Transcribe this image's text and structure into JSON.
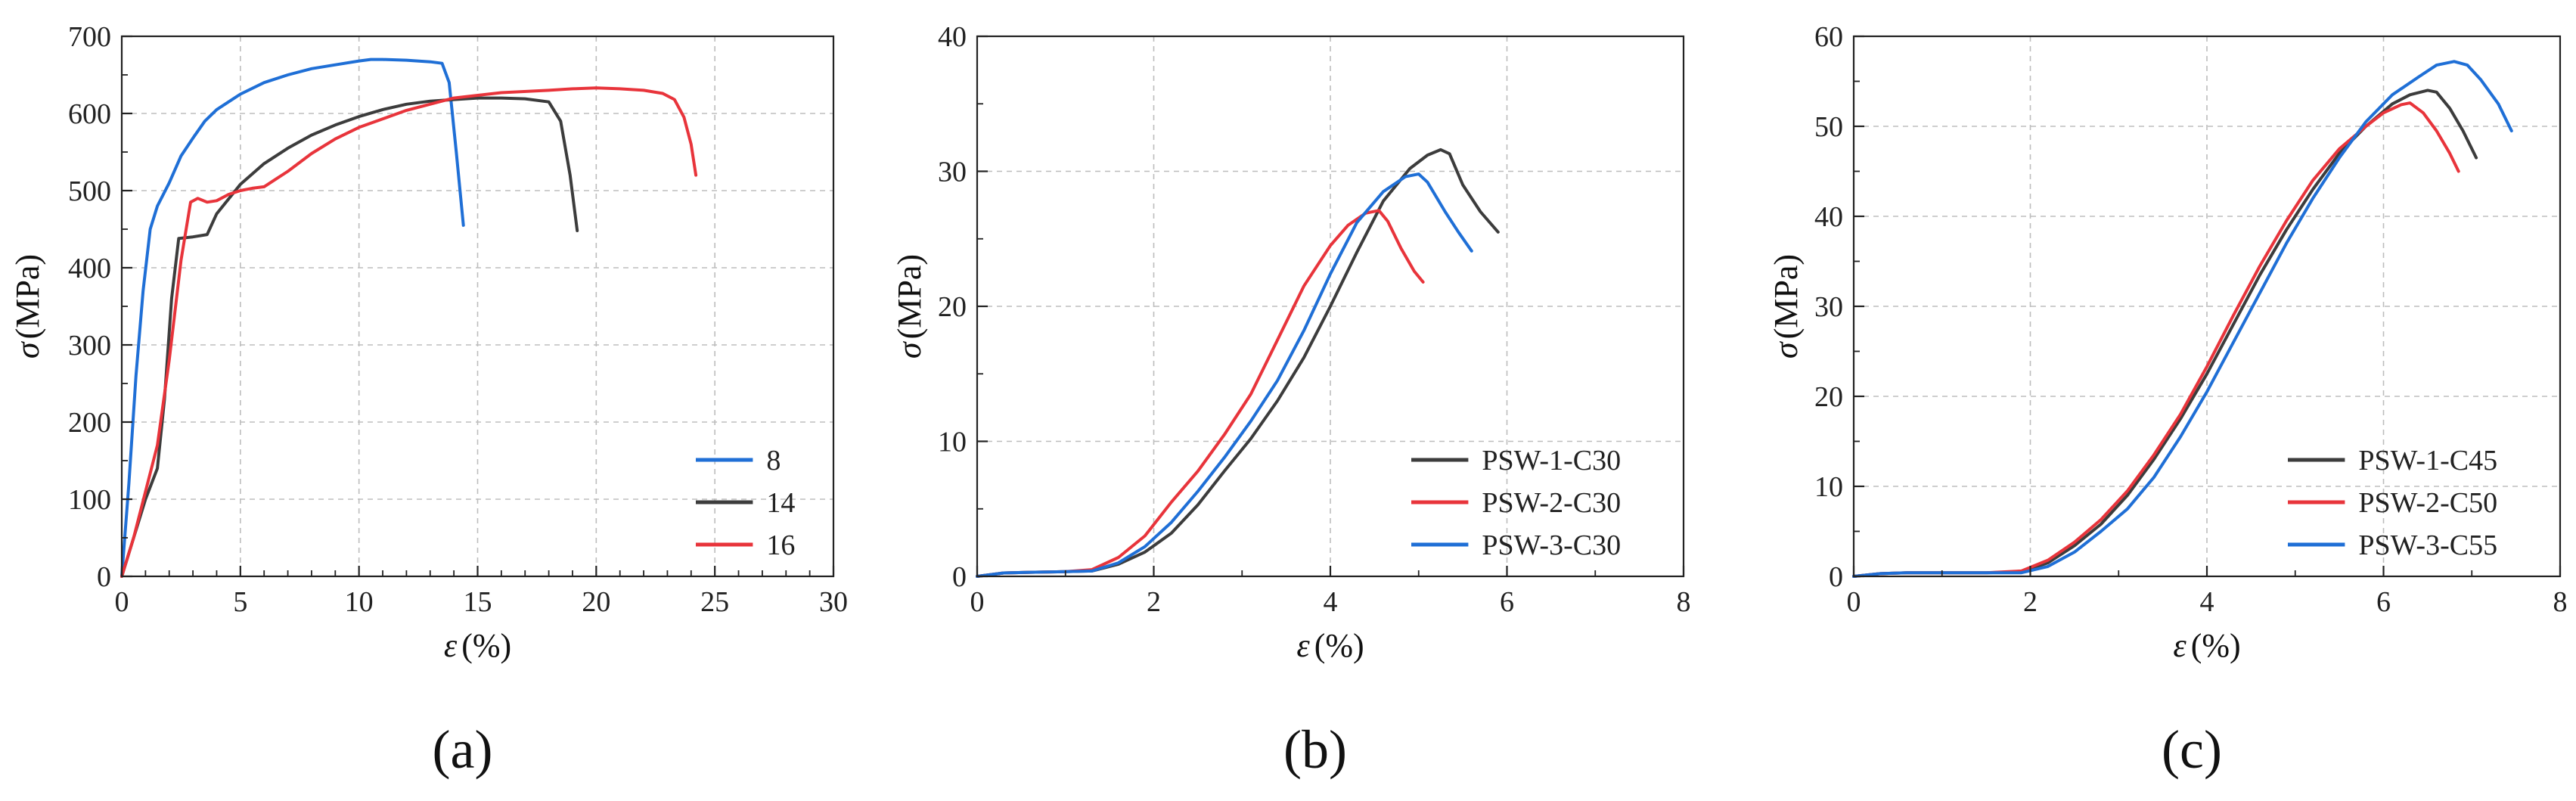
{
  "chart_data": [
    {
      "type": "line",
      "panel_label": "(a)",
      "xlabel_symbol": "ε",
      "xlabel_unit": "(%)",
      "ylabel_symbol": "σ",
      "ylabel_unit": "(MPa)",
      "xlim": [
        0,
        30
      ],
      "ylim": [
        0,
        700
      ],
      "xticks": [
        "0",
        "5",
        "10",
        "15",
        "20",
        "25",
        "30"
      ],
      "yticks": [
        "0",
        "100",
        "200",
        "300",
        "400",
        "500",
        "600",
        "700"
      ],
      "grid": true,
      "legend_position": "bottom-right",
      "series": [
        {
          "name": "8",
          "color": "#1f6fd6",
          "x": [
            0,
            0.3,
            0.6,
            0.9,
            1.2,
            1.5,
            2.0,
            2.5,
            3.0,
            3.5,
            4.0,
            5.0,
            6.0,
            7.0,
            8.0,
            9.0,
            10.0,
            10.5,
            11.0,
            12.0,
            13.0,
            13.5,
            13.8,
            14.1,
            14.4
          ],
          "y": [
            0,
            120,
            260,
            370,
            450,
            480,
            510,
            545,
            568,
            590,
            605,
            625,
            640,
            650,
            658,
            663,
            668,
            670,
            670,
            669,
            667,
            665,
            640,
            550,
            455
          ]
        },
        {
          "name": "14",
          "color": "#3c3c3c",
          "x": [
            0,
            0.5,
            1.0,
            1.5,
            1.8,
            2.1,
            2.4,
            3.0,
            3.6,
            4.0,
            5.0,
            6.0,
            7.0,
            8.0,
            9.0,
            10.0,
            11.0,
            12.0,
            13.0,
            14.0,
            15.0,
            16.0,
            17.0,
            18.0,
            18.5,
            18.9,
            19.2
          ],
          "y": [
            0,
            50,
            100,
            140,
            230,
            360,
            438,
            440,
            443,
            470,
            508,
            535,
            555,
            572,
            585,
            596,
            605,
            612,
            616,
            618,
            620,
            620,
            619,
            615,
            590,
            520,
            448
          ]
        },
        {
          "name": "16",
          "color": "#e8343b",
          "x": [
            0,
            0.5,
            1.0,
            1.5,
            2.0,
            2.5,
            2.9,
            3.2,
            3.6,
            4.0,
            4.5,
            5.0,
            5.5,
            6.0,
            6.5,
            7.0,
            8.0,
            9.0,
            10.0,
            12.0,
            14.0,
            16.0,
            18.0,
            19.0,
            20.0,
            21.0,
            22.0,
            22.8,
            23.3,
            23.7,
            24.0,
            24.2
          ],
          "y": [
            0,
            50,
            110,
            170,
            280,
            410,
            485,
            490,
            485,
            487,
            495,
            500,
            503,
            505,
            515,
            525,
            548,
            567,
            582,
            604,
            620,
            627,
            630,
            632,
            633,
            632,
            630,
            626,
            618,
            595,
            560,
            520
          ]
        }
      ]
    },
    {
      "type": "line",
      "panel_label": "(b)",
      "xlabel_symbol": "ε",
      "xlabel_unit": "(%)",
      "ylabel_symbol": "σ",
      "ylabel_unit": "(MPa)",
      "xlim": [
        0,
        8
      ],
      "ylim": [
        0,
        40
      ],
      "xticks": [
        "0",
        "2",
        "4",
        "6",
        "8"
      ],
      "yticks": [
        "0",
        "10",
        "20",
        "30",
        "40"
      ],
      "grid": true,
      "legend_position": "bottom-right",
      "series": [
        {
          "name": "PSW-1-C30",
          "color": "#3c3c3c",
          "x": [
            0,
            0.3,
            0.6,
            1.0,
            1.3,
            1.6,
            1.9,
            2.2,
            2.5,
            2.8,
            3.1,
            3.4,
            3.7,
            4.0,
            4.3,
            4.6,
            4.9,
            5.1,
            5.25,
            5.35,
            5.5,
            5.7,
            5.9
          ],
          "y": [
            0,
            0.25,
            0.3,
            0.35,
            0.4,
            0.9,
            1.8,
            3.2,
            5.3,
            7.8,
            10.2,
            13.0,
            16.2,
            20.0,
            24.0,
            27.8,
            30.2,
            31.2,
            31.6,
            31.3,
            29.0,
            27.0,
            25.5
          ]
        },
        {
          "name": "PSW-2-C30",
          "color": "#e8343b",
          "x": [
            0,
            0.3,
            0.6,
            1.0,
            1.3,
            1.6,
            1.9,
            2.2,
            2.5,
            2.8,
            3.1,
            3.4,
            3.7,
            4.0,
            4.2,
            4.4,
            4.55,
            4.65,
            4.8,
            4.95,
            5.05
          ],
          "y": [
            0,
            0.25,
            0.3,
            0.35,
            0.5,
            1.4,
            3.0,
            5.5,
            7.8,
            10.5,
            13.5,
            17.5,
            21.5,
            24.5,
            26.0,
            26.9,
            27.1,
            26.3,
            24.3,
            22.6,
            21.8
          ]
        },
        {
          "name": "PSW-3-C30",
          "color": "#1f6fd6",
          "x": [
            0,
            0.3,
            0.6,
            1.0,
            1.3,
            1.6,
            1.9,
            2.2,
            2.5,
            2.8,
            3.1,
            3.4,
            3.7,
            4.0,
            4.3,
            4.6,
            4.85,
            5.0,
            5.1,
            5.3,
            5.45,
            5.6
          ],
          "y": [
            0,
            0.25,
            0.3,
            0.35,
            0.4,
            1.0,
            2.2,
            4.0,
            6.3,
            8.8,
            11.5,
            14.5,
            18.2,
            22.4,
            26.2,
            28.5,
            29.6,
            29.8,
            29.2,
            27.0,
            25.5,
            24.1
          ]
        }
      ]
    },
    {
      "type": "line",
      "panel_label": "(c)",
      "xlabel_symbol": "ε",
      "xlabel_unit": "(%)",
      "ylabel_symbol": "σ",
      "ylabel_unit": "(MPa)",
      "xlim": [
        0,
        8
      ],
      "ylim": [
        0,
        60
      ],
      "xticks": [
        "0",
        "2",
        "4",
        "6",
        "8"
      ],
      "yticks": [
        "0",
        "10",
        "20",
        "30",
        "40",
        "50",
        "60"
      ],
      "grid": true,
      "legend_position": "bottom-right",
      "series": [
        {
          "name": "PSW-1-C45",
          "color": "#3c3c3c",
          "x": [
            0,
            0.3,
            0.6,
            1.0,
            1.5,
            1.9,
            2.2,
            2.5,
            2.8,
            3.1,
            3.4,
            3.7,
            4.0,
            4.3,
            4.6,
            4.9,
            5.2,
            5.5,
            5.8,
            6.1,
            6.3,
            6.5,
            6.6,
            6.75,
            6.9,
            7.05
          ],
          "y": [
            0,
            0.3,
            0.4,
            0.4,
            0.4,
            0.5,
            1.5,
            3.4,
            5.8,
            9.0,
            13.0,
            17.5,
            22.5,
            28.0,
            33.5,
            38.5,
            43.0,
            47.0,
            50.0,
            52.5,
            53.5,
            54.0,
            53.8,
            52.0,
            49.5,
            46.5
          ]
        },
        {
          "name": "PSW-2-C50",
          "color": "#e8343b",
          "x": [
            0,
            0.3,
            0.6,
            1.0,
            1.5,
            1.9,
            2.2,
            2.5,
            2.8,
            3.1,
            3.4,
            3.7,
            4.0,
            4.3,
            4.6,
            4.9,
            5.2,
            5.5,
            5.8,
            6.0,
            6.2,
            6.3,
            6.45,
            6.6,
            6.75,
            6.85
          ],
          "y": [
            0,
            0.3,
            0.4,
            0.4,
            0.4,
            0.6,
            1.8,
            3.8,
            6.3,
            9.5,
            13.5,
            18.0,
            23.3,
            29.0,
            34.5,
            39.5,
            44.0,
            47.5,
            50.0,
            51.5,
            52.4,
            52.6,
            51.5,
            49.5,
            47.0,
            45.0
          ]
        },
        {
          "name": "PSW-3-C55",
          "color": "#1f6fd6",
          "x": [
            0,
            0.3,
            0.6,
            1.0,
            1.5,
            1.9,
            2.2,
            2.5,
            2.8,
            3.1,
            3.4,
            3.7,
            4.0,
            4.3,
            4.6,
            4.9,
            5.2,
            5.5,
            5.8,
            6.1,
            6.4,
            6.6,
            6.8,
            6.95,
            7.1,
            7.3,
            7.45
          ],
          "y": [
            0,
            0.3,
            0.4,
            0.4,
            0.4,
            0.4,
            1.1,
            2.7,
            5.0,
            7.5,
            11.0,
            15.5,
            20.5,
            26.0,
            31.5,
            37.0,
            42.0,
            46.5,
            50.5,
            53.5,
            55.5,
            56.8,
            57.2,
            56.8,
            55.2,
            52.5,
            49.5
          ]
        }
      ]
    }
  ]
}
